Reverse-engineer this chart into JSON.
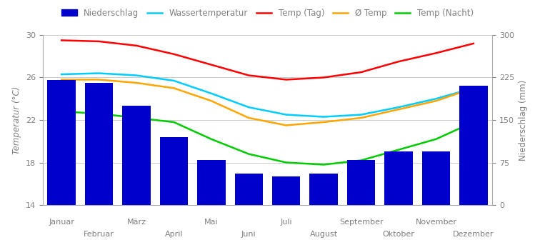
{
  "months": [
    "Januar",
    "Februar",
    "März",
    "April",
    "Mai",
    "Juni",
    "Juli",
    "August",
    "September",
    "Oktober",
    "November",
    "Dezember"
  ],
  "precipitation": [
    220,
    215,
    175,
    120,
    80,
    55,
    50,
    55,
    80,
    95,
    95,
    210
  ],
  "temp_day": [
    29.5,
    29.4,
    29.0,
    28.2,
    27.2,
    26.2,
    25.8,
    26.0,
    26.5,
    27.5,
    28.3,
    29.2
  ],
  "temp_avg": [
    25.8,
    25.8,
    25.5,
    25.0,
    23.8,
    22.2,
    21.5,
    21.8,
    22.2,
    23.0,
    23.8,
    25.0
  ],
  "temp_night": [
    22.8,
    22.6,
    22.2,
    21.8,
    20.2,
    18.8,
    18.0,
    17.8,
    18.2,
    19.2,
    20.2,
    21.8
  ],
  "water_temp": [
    26.3,
    26.4,
    26.2,
    25.7,
    24.5,
    23.2,
    22.5,
    22.3,
    22.5,
    23.2,
    24.0,
    25.0
  ],
  "bar_color": "#0000CC",
  "line_water": "#00CCFF",
  "line_temp_day": "#FF0000",
  "line_temp_avg": "#FFA500",
  "line_temp_night": "#00CC00",
  "ylim_left": [
    14,
    30
  ],
  "ylim_right": [
    0,
    300
  ],
  "yticks_left": [
    14,
    18,
    22,
    26,
    30
  ],
  "yticks_right": [
    0,
    75,
    150,
    225,
    300
  ],
  "ylabel_left": "Temperatur (°C)",
  "ylabel_right": "Niederschlag (mm)",
  "legend_labels": [
    "Niederschlag",
    "Wassertemperatur",
    "Temp (Tag)",
    "Ø Temp",
    "Temp (Nacht)"
  ],
  "background_color": "#ffffff",
  "grid_color": "#cccccc",
  "fig_width": 7.49,
  "fig_height": 3.5,
  "dpi": 100
}
